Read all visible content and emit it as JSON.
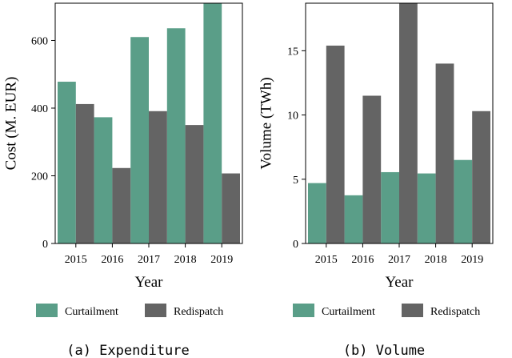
{
  "colors": {
    "curtailment": "#5a9e88",
    "redispatch": "#646464"
  },
  "chart_data": [
    {
      "type": "bar",
      "caption": "(a) Expenditure",
      "categories": [
        "2015",
        "2016",
        "2017",
        "2018",
        "2019"
      ],
      "xlabel": "Year",
      "ylabel": "Cost (M. EUR)",
      "ylim": [
        0,
        710
      ],
      "yticks": [
        0,
        200,
        400,
        600
      ],
      "grid": false,
      "legend_position": "bottom",
      "series": [
        {
          "name": "Curtailment",
          "color_key": "curtailment",
          "values": [
            478,
            373,
            610,
            636,
            710
          ]
        },
        {
          "name": "Redispatch",
          "color_key": "redispatch",
          "values": [
            412,
            223,
            391,
            350,
            207
          ]
        }
      ]
    },
    {
      "type": "bar",
      "caption": "(b) Volume",
      "categories": [
        "2015",
        "2016",
        "2017",
        "2018",
        "2019"
      ],
      "xlabel": "Year",
      "ylabel": "Volume (TWh)",
      "ylim": [
        0,
        18.7
      ],
      "yticks": [
        0,
        5,
        10,
        15
      ],
      "grid": false,
      "legend_position": "bottom",
      "series": [
        {
          "name": "Curtailment",
          "color_key": "curtailment",
          "values": [
            4.7,
            3.75,
            5.55,
            5.45,
            6.5
          ]
        },
        {
          "name": "Redispatch",
          "color_key": "redispatch",
          "values": [
            15.4,
            11.5,
            18.7,
            14.0,
            10.3
          ]
        }
      ]
    }
  ]
}
